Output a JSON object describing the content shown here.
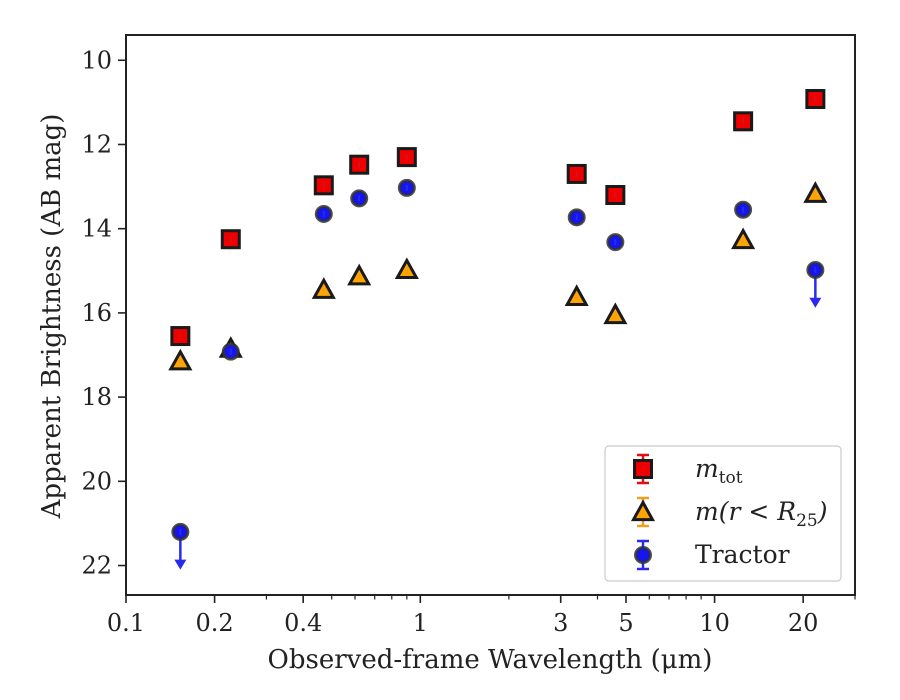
{
  "chart_data": {
    "type": "scatter",
    "xlabel": "Observed-frame Wavelength (μm)",
    "ylabel": "Apparent Brightness (AB mag)",
    "xscale": "log",
    "xlim": [
      0.1,
      30
    ],
    "ylim": [
      22.7,
      9.4
    ],
    "y_inverted": true,
    "xticks": [
      {
        "value": 0.1,
        "label": "0.1"
      },
      {
        "value": 0.2,
        "label": "0.2"
      },
      {
        "value": 0.4,
        "label": "0.4"
      },
      {
        "value": 1,
        "label": "1"
      },
      {
        "value": 3,
        "label": "3"
      },
      {
        "value": 5,
        "label": "5"
      },
      {
        "value": 10,
        "label": "10"
      },
      {
        "value": 20,
        "label": "20"
      }
    ],
    "yticks": [
      10,
      12,
      14,
      16,
      18,
      20,
      22
    ],
    "grid": false,
    "legend_position": "lower-right",
    "series": [
      {
        "name": "m_tot",
        "legend_main": "m",
        "legend_sub": "tot",
        "marker": "square",
        "color": "#ee0000",
        "edge_color": "#1a1a1a",
        "errorbar_color": "#dd1111",
        "points": [
          {
            "x": 0.153,
            "y": 16.55
          },
          {
            "x": 0.227,
            "y": 14.25
          },
          {
            "x": 0.47,
            "y": 12.97
          },
          {
            "x": 0.62,
            "y": 12.48
          },
          {
            "x": 0.9,
            "y": 12.3
          },
          {
            "x": 3.4,
            "y": 12.7
          },
          {
            "x": 4.6,
            "y": 13.2
          },
          {
            "x": 12.5,
            "y": 11.45
          },
          {
            "x": 22.0,
            "y": 10.92
          }
        ]
      },
      {
        "name": "m(r < R25)",
        "legend_main": "m(r < R",
        "legend_sub": "25",
        "legend_tail": ")",
        "marker": "triangle",
        "color": "#ffa500",
        "edge_color": "#1a1a1a",
        "errorbar_color": "#f0a020",
        "points": [
          {
            "x": 0.153,
            "y": 17.15
          },
          {
            "x": 0.227,
            "y": 16.85
          },
          {
            "x": 0.47,
            "y": 15.45
          },
          {
            "x": 0.62,
            "y": 15.13
          },
          {
            "x": 0.9,
            "y": 14.98
          },
          {
            "x": 3.4,
            "y": 15.62
          },
          {
            "x": 4.6,
            "y": 16.05
          },
          {
            "x": 12.5,
            "y": 14.27
          },
          {
            "x": 22.0,
            "y": 13.17
          }
        ]
      },
      {
        "name": "Tractor",
        "legend_main": "Tractor",
        "marker": "circle",
        "color": "#1515ee",
        "edge_color": "#333333",
        "errorbar_color": "#2a2aee",
        "points": [
          {
            "x": 0.153,
            "y": 21.2,
            "upper_limit": true
          },
          {
            "x": 0.227,
            "y": 16.92
          },
          {
            "x": 0.47,
            "y": 13.65
          },
          {
            "x": 0.62,
            "y": 13.28
          },
          {
            "x": 0.9,
            "y": 13.03
          },
          {
            "x": 3.4,
            "y": 13.73
          },
          {
            "x": 4.6,
            "y": 14.32
          },
          {
            "x": 12.5,
            "y": 13.55
          },
          {
            "x": 22.0,
            "y": 14.98,
            "upper_limit": true
          }
        ]
      }
    ]
  }
}
